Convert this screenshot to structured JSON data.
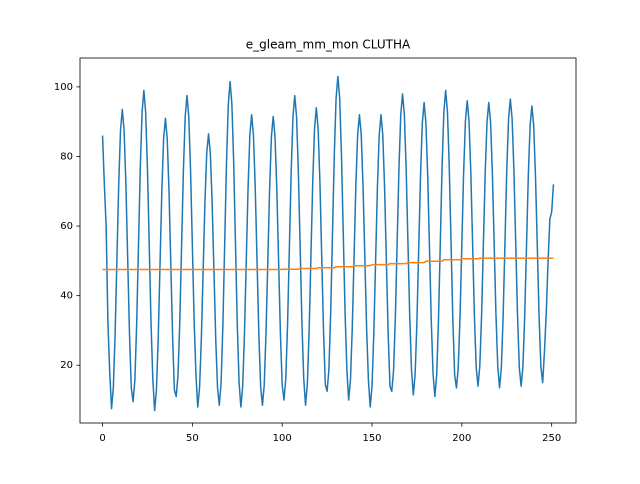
{
  "chart_data": {
    "type": "line",
    "title": "e_gleam_mm_mon CLUTHA",
    "x": [
      0,
      1,
      2,
      3,
      4,
      5,
      6,
      7,
      8,
      9,
      10,
      11,
      12,
      13,
      14,
      15,
      16,
      17,
      18,
      19,
      20,
      21,
      22,
      23,
      24,
      25,
      26,
      27,
      28,
      29,
      30,
      31,
      32,
      33,
      34,
      35,
      36,
      37,
      38,
      39,
      40,
      41,
      42,
      43,
      44,
      45,
      46,
      47,
      48,
      49,
      50,
      51,
      52,
      53,
      54,
      55,
      56,
      57,
      58,
      59,
      60,
      61,
      62,
      63,
      64,
      65,
      66,
      67,
      68,
      69,
      70,
      71,
      72,
      73,
      74,
      75,
      76,
      77,
      78,
      79,
      80,
      81,
      82,
      83,
      84,
      85,
      86,
      87,
      88,
      89,
      90,
      91,
      92,
      93,
      94,
      95,
      96,
      97,
      98,
      99,
      100,
      101,
      102,
      103,
      104,
      105,
      106,
      107,
      108,
      109,
      110,
      111,
      112,
      113,
      114,
      115,
      116,
      117,
      118,
      119,
      120,
      121,
      122,
      123,
      124,
      125,
      126,
      127,
      128,
      129,
      130,
      131,
      132,
      133,
      134,
      135,
      136,
      137,
      138,
      139,
      140,
      141,
      142,
      143,
      144,
      145,
      146,
      147,
      148,
      149,
      150,
      151,
      152,
      153,
      154,
      155,
      156,
      157,
      158,
      159,
      160,
      161,
      162,
      163,
      164,
      165,
      166,
      167,
      168,
      169,
      170,
      171,
      172,
      173,
      174,
      175,
      176,
      177,
      178,
      179,
      180,
      181,
      182,
      183,
      184,
      185,
      186,
      187,
      188,
      189,
      190,
      191,
      192,
      193,
      194,
      195,
      196,
      197,
      198,
      199,
      200,
      201,
      202,
      203,
      204,
      205,
      206,
      207,
      208,
      209,
      210,
      211,
      212,
      213,
      214,
      215,
      216,
      217,
      218,
      219,
      220,
      221,
      222,
      223,
      224,
      225,
      226,
      227,
      228,
      229,
      230,
      231,
      232,
      233,
      234,
      235,
      236,
      237,
      238,
      239,
      240,
      241,
      242,
      243,
      244,
      245,
      246,
      247,
      248,
      249,
      250,
      251
    ],
    "series": [
      {
        "color": "#1f77b4",
        "values": [
          86,
          72,
          60,
          32,
          18,
          7.5,
          13.5,
          29,
          50.5,
          72,
          87.5,
          93.5,
          87.5,
          72,
          50.5,
          29,
          13.5,
          9.5,
          15.8,
          31.9,
          54.3,
          76.6,
          92.7,
          99,
          92.7,
          76.6,
          54.3,
          31.9,
          15.8,
          7,
          12.9,
          28,
          49,
          70,
          85.1,
          91,
          85.1,
          70,
          49,
          28,
          12.9,
          11,
          17.1,
          32.6,
          54.3,
          75.9,
          91.4,
          97.5,
          91.4,
          75.9,
          54.3,
          32.6,
          17.1,
          8,
          13.5,
          27.6,
          47.3,
          66.9,
          81,
          86.5,
          81,
          66.9,
          47.3,
          27.6,
          13.5,
          8.5,
          15,
          31.8,
          55,
          78.3,
          95,
          101.5,
          95,
          78.3,
          55,
          31.8,
          15,
          8,
          13.9,
          29,
          50,
          71,
          86.1,
          92,
          86.1,
          71,
          50,
          29,
          13.9,
          8.5,
          14.3,
          29.3,
          50,
          70.8,
          85.7,
          91.5,
          85.7,
          70.8,
          50,
          29.3,
          14.3,
          10,
          16.1,
          31.9,
          53.8,
          75.6,
          91.4,
          97.5,
          91.4,
          75.6,
          53.8,
          31.9,
          16.1,
          8.5,
          14.5,
          29.9,
          51.3,
          72.6,
          88,
          94,
          88,
          72.6,
          51.3,
          29.9,
          14.5,
          12.5,
          18.8,
          35.1,
          57.8,
          80.4,
          96.7,
          103,
          96.7,
          80.4,
          57.8,
          35.1,
          18.8,
          10,
          15.7,
          30.5,
          51,
          71.5,
          86.3,
          92,
          86.3,
          71.5,
          51,
          30.5,
          15.7,
          8,
          13.9,
          29,
          50,
          71,
          86.1,
          92,
          86.1,
          71,
          50,
          29,
          13.9,
          12.5,
          18.5,
          33.9,
          55.3,
          76.6,
          92,
          98,
          92,
          76.6,
          55.3,
          33.9,
          18.5,
          11.5,
          17.4,
          32.5,
          53.5,
          74.5,
          89.6,
          95.5,
          89.6,
          74.5,
          53.5,
          32.5,
          17.4,
          11,
          17.2,
          33,
          55,
          77,
          92.8,
          99,
          92.8,
          77,
          55,
          33,
          17.2,
          13.5,
          19.3,
          34.1,
          54.8,
          75.4,
          90.2,
          96,
          90.2,
          75.4,
          54.8,
          34.1,
          19.3,
          14,
          19.7,
          34.4,
          54.8,
          75.1,
          89.8,
          95.5,
          89.8,
          75.1,
          54.8,
          34.4,
          19.7,
          13.5,
          19.3,
          34.3,
          55,
          75.8,
          90.7,
          96.5,
          90.7,
          75.8,
          55,
          34.3,
          19.3,
          14,
          19.6,
          34.1,
          54.3,
          74.4,
          88.9,
          94.5,
          88.9,
          74.4,
          54.3,
          34.1,
          19.6,
          15,
          24,
          35,
          50,
          62,
          64,
          72
        ]
      },
      {
        "color": "#ff7f0e",
        "values": [
          47.5,
          47.5,
          47.5,
          47.5,
          47.5,
          47.5,
          47.5,
          47.5,
          47.5,
          47.5,
          47.5,
          47.5,
          47.5,
          47.5,
          47.5,
          47.5,
          47.5,
          47.5,
          47.5,
          47.5,
          47.5,
          47.5,
          47.5,
          47.5,
          47.5,
          47.5,
          47.5,
          47.5,
          47.5,
          47.5,
          47.5,
          47.5,
          47.5,
          47.5,
          47.5,
          47.5,
          47.5,
          47.5,
          47.5,
          47.5,
          47.5,
          47.5,
          47.5,
          47.5,
          47.5,
          47.5,
          47.5,
          47.5,
          47.5,
          47.5,
          47.5,
          47.5,
          47.5,
          47.5,
          47.5,
          47.5,
          47.5,
          47.5,
          47.5,
          47.5,
          47.5,
          47.5,
          47.5,
          47.5,
          47.5,
          47.5,
          47.5,
          47.5,
          47.5,
          47.5,
          47.5,
          47.5,
          47.5,
          47.5,
          47.5,
          47.5,
          47.5,
          47.5,
          47.5,
          47.5,
          47.5,
          47.5,
          47.5,
          47.5,
          47.5,
          47.5,
          47.5,
          47.5,
          47.5,
          47.5,
          47.5,
          47.5,
          47.5,
          47.5,
          47.5,
          47.5,
          47.5,
          47.5,
          47.5,
          47.5,
          47.6,
          47.6,
          47.6,
          47.6,
          47.6,
          47.6,
          47.6,
          47.6,
          47.6,
          47.6,
          47.8,
          47.8,
          47.8,
          47.8,
          47.8,
          47.8,
          47.8,
          47.8,
          47.8,
          47.8,
          48,
          48,
          48,
          48,
          48,
          48,
          48,
          48,
          48,
          48,
          48.3,
          48.3,
          48.3,
          48.3,
          48.3,
          48.3,
          48.3,
          48.3,
          48.3,
          48.3,
          48.6,
          48.6,
          48.6,
          48.6,
          48.6,
          48.6,
          48.6,
          48.6,
          48.6,
          48.6,
          48.9,
          48.9,
          48.9,
          48.9,
          48.9,
          48.9,
          48.9,
          48.9,
          48.9,
          48.9,
          49.2,
          49.2,
          49.2,
          49.2,
          49.2,
          49.2,
          49.2,
          49.2,
          49.2,
          49.2,
          49.5,
          49.5,
          49.5,
          49.5,
          49.5,
          49.5,
          49.5,
          49.5,
          49.5,
          49.5,
          49.9,
          49.9,
          49.9,
          49.9,
          49.9,
          49.9,
          49.9,
          49.9,
          49.9,
          49.9,
          50.3,
          50.3,
          50.3,
          50.3,
          50.3,
          50.3,
          50.3,
          50.3,
          50.3,
          50.3,
          50.6,
          50.6,
          50.6,
          50.6,
          50.6,
          50.6,
          50.6,
          50.6,
          50.6,
          50.6,
          50.8,
          50.8,
          50.8,
          50.8,
          50.8,
          50.8,
          50.8,
          50.8,
          50.8,
          50.8,
          50.8,
          50.8,
          50.8,
          50.8,
          50.8,
          50.8,
          50.8,
          50.8,
          50.8,
          50.8,
          50.8,
          50.8,
          50.8,
          50.8,
          50.8,
          50.8,
          50.8,
          50.8,
          50.8,
          50.8,
          50.8,
          50.8,
          50.8,
          50.8,
          50.8,
          50.8,
          50.8,
          50.8,
          50.8,
          50.8,
          50.8,
          50.8
        ]
      }
    ],
    "xlim": [
      -12.55,
      263.55
    ],
    "xticks": [
      0,
      50,
      100,
      150,
      200,
      250
    ],
    "ylim": [
      3.4,
      108.3
    ],
    "yticks": [
      20,
      40,
      60,
      80,
      100
    ]
  }
}
